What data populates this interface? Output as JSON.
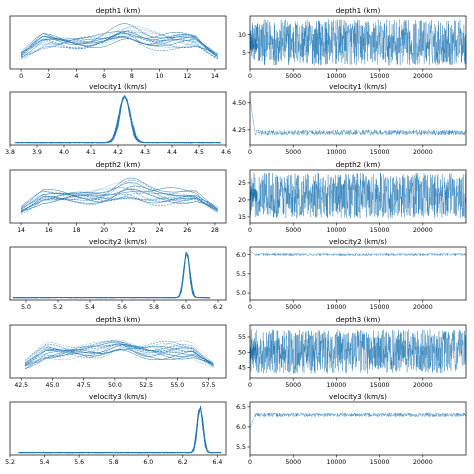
{
  "figure": {
    "line_color": "#1f77b4",
    "background": "#ffffff"
  },
  "chart_data": [
    {
      "id": "depth1-hist",
      "type": "line",
      "title": "depth1 (km)",
      "x_ticks": [
        "0",
        "2",
        "4",
        "6",
        "8",
        "10",
        "12",
        "14"
      ],
      "x_range": [
        -0.8,
        14.8
      ],
      "y_ticks": [],
      "shape": "plateau",
      "center": 7.6,
      "low": 0.0,
      "high": 14.2,
      "chains": 16
    },
    {
      "id": "depth1-trace",
      "type": "line",
      "title": "depth1 (km)",
      "x_ticks": [
        "0",
        "5000",
        "10000",
        "15000",
        "20000"
      ],
      "x_range": [
        0,
        25000
      ],
      "y_ticks": [
        "5",
        "10"
      ],
      "y_values": [
        5,
        10
      ],
      "y_range": [
        0.5,
        15.2
      ],
      "trace_mean": 7.2,
      "trace_low": 1.5,
      "trace_high": 14.3,
      "trace_kind": "noise"
    },
    {
      "id": "velocity1-hist",
      "type": "line",
      "title": "velocity1 (km/s)",
      "x_ticks": [
        "3.8",
        "3.9",
        "4.0",
        "4.1",
        "4.2",
        "4.3",
        "4.4",
        "4.5",
        "4.6"
      ],
      "x_range": [
        3.8,
        4.6
      ],
      "y_ticks": [],
      "shape": "peak",
      "center": 4.225,
      "width": 0.02,
      "low": 3.82,
      "high": 4.58,
      "chains": 16
    },
    {
      "id": "velocity1-trace",
      "type": "line",
      "title": "velocity1 (km/s)",
      "x_ticks": [
        "0",
        "5000",
        "10000",
        "15000",
        "20000"
      ],
      "x_range": [
        0,
        25000
      ],
      "y_ticks": [
        "4.25",
        "4.50"
      ],
      "y_values": [
        4.25,
        4.5
      ],
      "y_range": [
        4.11,
        4.6
      ],
      "trace_mean": 4.225,
      "trace_low": 4.2,
      "trace_high": 4.25,
      "trace_kind": "burn",
      "burn_start": 4.55
    },
    {
      "id": "depth2-hist",
      "type": "line",
      "title": "depth2 (km)",
      "x_ticks": [
        "14",
        "16",
        "18",
        "20",
        "22",
        "24",
        "26",
        "28"
      ],
      "x_range": [
        13.2,
        28.8
      ],
      "y_ticks": [],
      "shape": "plateau",
      "center": 21.8,
      "low": 14.0,
      "high": 28.2,
      "chains": 16
    },
    {
      "id": "depth2-trace",
      "type": "line",
      "title": "depth2 (km)",
      "x_ticks": [
        "0",
        "5000",
        "10000",
        "15000",
        "20000"
      ],
      "x_range": [
        0,
        25000
      ],
      "y_ticks": [
        "15",
        "20",
        "25"
      ],
      "y_values": [
        15,
        20,
        25
      ],
      "y_range": [
        13.2,
        28.8
      ],
      "trace_mean": 21.5,
      "trace_low": 14.5,
      "trace_high": 28.0,
      "trace_kind": "noise"
    },
    {
      "id": "velocity2-hist",
      "type": "line",
      "title": "velocity2 (km/s)",
      "x_ticks": [
        "5.0",
        "5.2",
        "5.4",
        "5.6",
        "5.8",
        "6.0",
        "6.2"
      ],
      "x_range": [
        4.9,
        6.25
      ],
      "y_ticks": [],
      "shape": "peak",
      "center": 6.005,
      "width": 0.018,
      "low": 4.92,
      "high": 6.15,
      "chains": 16
    },
    {
      "id": "velocity2-trace",
      "type": "line",
      "title": "velocity2 (km/s)",
      "x_ticks": [
        "0",
        "5000",
        "10000",
        "15000",
        "20000"
      ],
      "x_range": [
        0,
        25000
      ],
      "y_ticks": [
        "5.0",
        "5.5",
        "6.0"
      ],
      "y_values": [
        5.0,
        5.5,
        6.0
      ],
      "y_range": [
        4.82,
        6.2
      ],
      "trace_mean": 6.005,
      "trace_low": 5.97,
      "trace_high": 6.04,
      "trace_kind": "burn",
      "burn_start": 6.12
    },
    {
      "id": "depth3-hist",
      "type": "line",
      "title": "depth3 (km)",
      "x_ticks": [
        "42.5",
        "45.0",
        "47.5",
        "50.0",
        "52.5",
        "55.0",
        "57.5"
      ],
      "x_range": [
        41.6,
        58.9
      ],
      "y_ticks": [],
      "shape": "plateau",
      "center": 50.5,
      "low": 42.8,
      "high": 57.9,
      "chains": 16
    },
    {
      "id": "depth3-trace",
      "type": "line",
      "title": "depth3 (km)",
      "x_ticks": [
        "0",
        "5000",
        "10000",
        "15000",
        "20000"
      ],
      "x_range": [
        0,
        25000
      ],
      "y_ticks": [
        "45",
        "50",
        "55"
      ],
      "y_values": [
        45,
        50,
        55
      ],
      "y_range": [
        41.6,
        58.9
      ],
      "trace_mean": 50.2,
      "trace_low": 43.0,
      "trace_high": 57.5,
      "trace_kind": "noise"
    },
    {
      "id": "velocity3-hist",
      "type": "line",
      "title": "velocity3 (km/s)",
      "x_ticks": [
        "5.2",
        "5.4",
        "5.6",
        "5.8",
        "6.0",
        "6.2",
        "6.4"
      ],
      "x_range": [
        5.2,
        6.45
      ],
      "y_ticks": [],
      "shape": "peak",
      "center": 6.3,
      "width": 0.016,
      "low": 5.25,
      "high": 6.42,
      "chains": 16
    },
    {
      "id": "velocity3-trace",
      "type": "line",
      "title": "velocity3 (km/s)",
      "x_ticks": [
        "0",
        "5000",
        "10000",
        "15000",
        "20000"
      ],
      "x_range": [
        0,
        25000
      ],
      "y_ticks": [
        "5.5",
        "6.0",
        "6.5"
      ],
      "y_values": [
        5.5,
        6.0,
        6.5
      ],
      "y_range": [
        5.3,
        6.62
      ],
      "trace_mean": 6.3,
      "trace_low": 6.25,
      "trace_high": 6.35,
      "trace_kind": "burn",
      "burn_start": 5.95
    }
  ]
}
